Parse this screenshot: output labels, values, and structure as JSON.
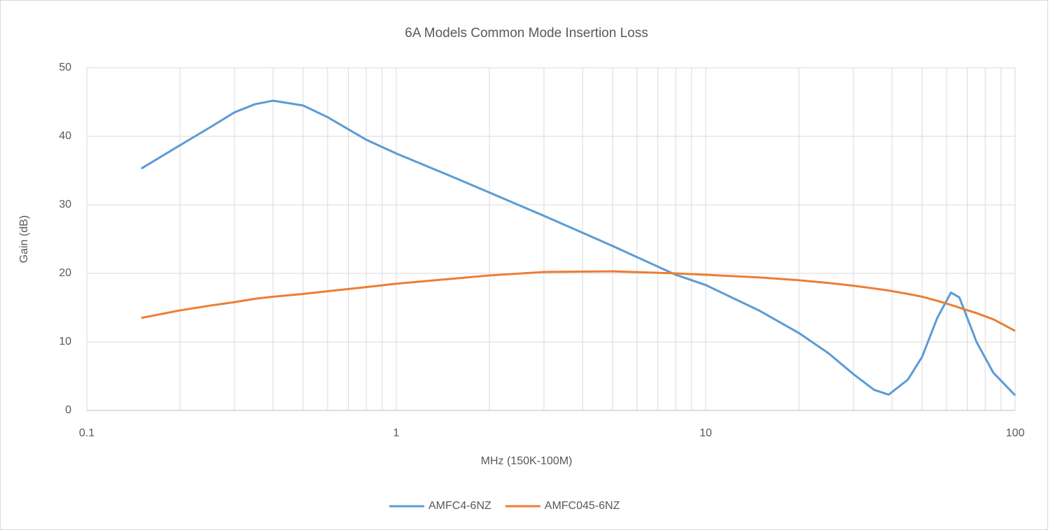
{
  "chart_data": {
    "type": "line",
    "title": "6A Models Common Mode Insertion Loss",
    "x_label": "MHz (150K-100M)",
    "y_label": "Gain (dB)",
    "x": [
      0.15,
      0.2,
      0.25,
      0.3,
      0.35,
      0.4,
      0.5,
      0.6,
      0.8,
      1,
      1.5,
      2,
      3,
      5,
      8,
      10,
      15,
      20,
      25,
      30,
      35,
      39,
      45,
      50,
      56,
      62,
      66,
      75,
      85,
      100
    ],
    "series": [
      {
        "name": "AMFC4-6NZ",
        "color": "#5b9bd5",
        "values": [
          35.3,
          38.7,
          41.3,
          43.5,
          44.7,
          45.2,
          44.5,
          42.8,
          39.5,
          37.5,
          34.2,
          31.8,
          28.4,
          24.0,
          19.8,
          18.3,
          14.5,
          11.3,
          8.3,
          5.3,
          3.0,
          2.3,
          4.5,
          7.8,
          13.5,
          17.2,
          16.5,
          10.0,
          5.5,
          2.2
        ]
      },
      {
        "name": "AMFC045-6NZ",
        "color": "#ed7d31",
        "values": [
          13.5,
          14.6,
          15.3,
          15.8,
          16.3,
          16.6,
          17.0,
          17.4,
          18.0,
          18.5,
          19.2,
          19.7,
          20.2,
          20.3,
          20.0,
          19.8,
          19.4,
          19.0,
          18.6,
          18.2,
          17.8,
          17.5,
          17.0,
          16.6,
          16.0,
          15.4,
          15.0,
          14.2,
          13.3,
          11.6
        ]
      }
    ],
    "xlim": [
      0.1,
      100
    ],
    "xticks": [
      0.1,
      1,
      10,
      100
    ],
    "x_log": true,
    "ylim": [
      0,
      50
    ],
    "yticks": [
      0,
      10,
      20,
      30,
      40,
      50
    ],
    "grid": true,
    "minor_grid": true,
    "legend": "bottom"
  }
}
